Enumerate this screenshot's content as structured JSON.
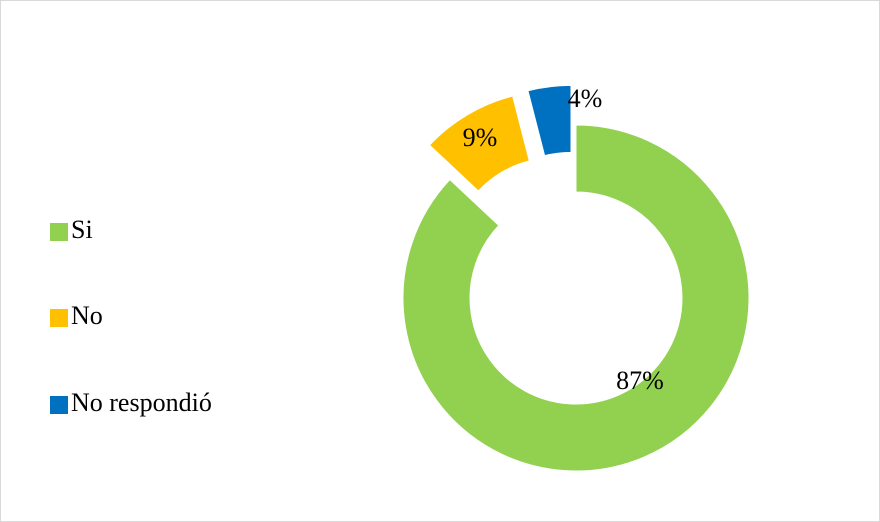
{
  "chart_data": {
    "type": "pie",
    "donut": true,
    "categories": [
      "Si",
      "No",
      "No respondió"
    ],
    "values": [
      87,
      9,
      4
    ],
    "value_labels": [
      "87%",
      "9%",
      "4%"
    ],
    "colors": [
      "#92d050",
      "#ffc000",
      "#0070c0"
    ],
    "legend": "left"
  }
}
